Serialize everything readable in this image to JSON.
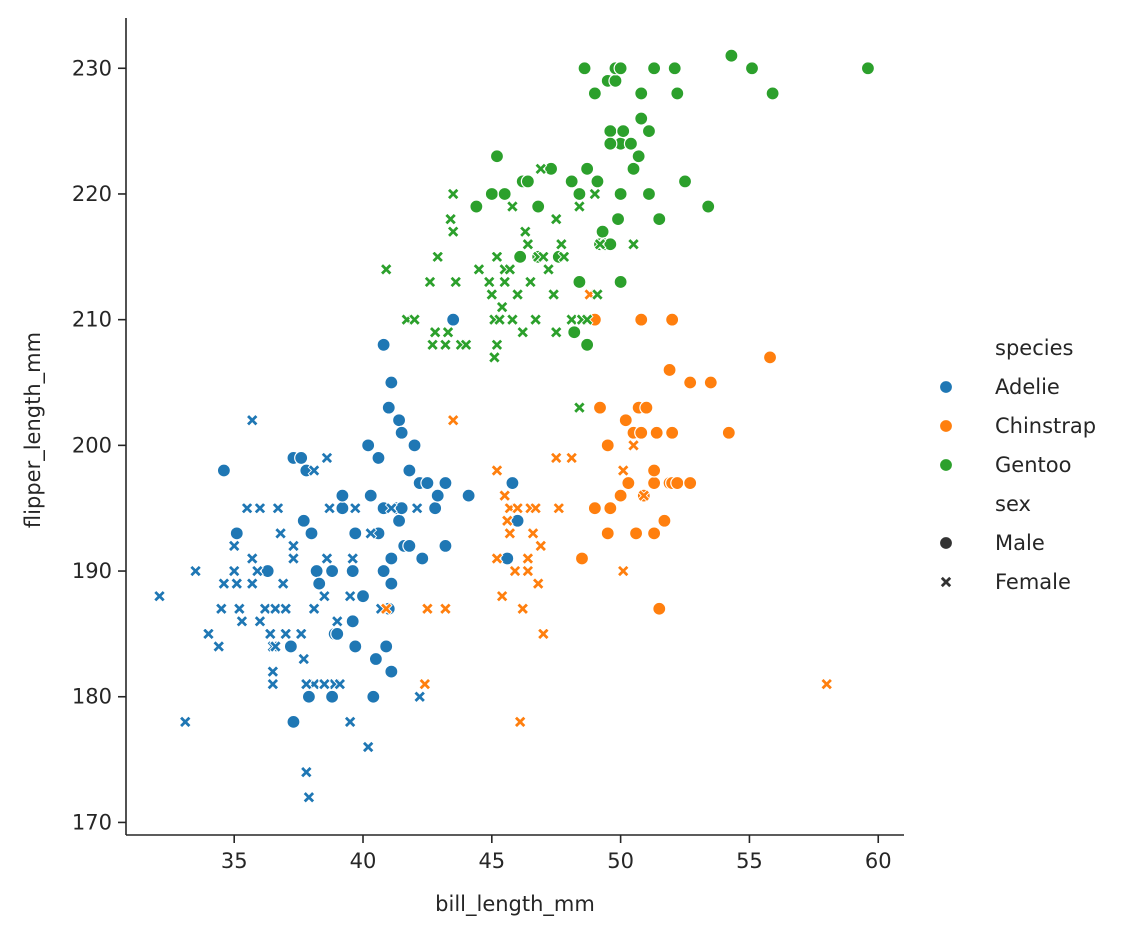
{
  "chart_data": {
    "type": "scatter",
    "title": "",
    "xlabel": "bill_length_mm",
    "ylabel": "flipper_length_mm",
    "xlim": [
      30.8,
      61.0
    ],
    "ylim": [
      169,
      234
    ],
    "xticks": [
      35,
      40,
      45,
      50,
      55,
      60
    ],
    "yticks": [
      170,
      180,
      190,
      200,
      210,
      220,
      230
    ],
    "grid": false,
    "legend": {
      "placement": "right",
      "hue_title": "species",
      "style_title": "sex",
      "hue_entries": [
        {
          "label": "Adelie",
          "color": "#1f77b4"
        },
        {
          "label": "Chinstrap",
          "color": "#ff7f0e"
        },
        {
          "label": "Gentoo",
          "color": "#2ca02c"
        }
      ],
      "style_entries": [
        {
          "label": "Male",
          "marker": "circle"
        },
        {
          "label": "Female",
          "marker": "x"
        }
      ]
    },
    "series": [
      {
        "species": "Adelie",
        "sex": "Male",
        "color": "#1f77b4",
        "marker": "circle",
        "points": [
          [
            34.6,
            198
          ],
          [
            35.1,
            193
          ],
          [
            36.3,
            190
          ],
          [
            37.3,
            199
          ],
          [
            37.6,
            199
          ],
          [
            37.8,
            198
          ],
          [
            37.7,
            194
          ],
          [
            38.0,
            193
          ],
          [
            37.2,
            184
          ],
          [
            37.3,
            178
          ],
          [
            37.9,
            180
          ],
          [
            38.2,
            190
          ],
          [
            38.8,
            190
          ],
          [
            38.9,
            185
          ],
          [
            39.2,
            195
          ],
          [
            39.2,
            196
          ],
          [
            39.6,
            190
          ],
          [
            39.7,
            193
          ],
          [
            39.6,
            186
          ],
          [
            39.7,
            184
          ],
          [
            39.0,
            185
          ],
          [
            38.8,
            180
          ],
          [
            38.3,
            189
          ],
          [
            40.2,
            200
          ],
          [
            40.3,
            196
          ],
          [
            40.6,
            199
          ],
          [
            40.6,
            193
          ],
          [
            40.8,
            195
          ],
          [
            41.1,
            205
          ],
          [
            41.0,
            203
          ],
          [
            41.4,
            202
          ],
          [
            41.5,
            201
          ],
          [
            41.3,
            195
          ],
          [
            41.4,
            194
          ],
          [
            41.6,
            192
          ],
          [
            41.1,
            189
          ],
          [
            41.0,
            187
          ],
          [
            40.9,
            184
          ],
          [
            41.1,
            182
          ],
          [
            40.5,
            183
          ],
          [
            40.0,
            188
          ],
          [
            40.4,
            180
          ],
          [
            40.8,
            190
          ],
          [
            41.8,
            198
          ],
          [
            42.0,
            200
          ],
          [
            42.2,
            197
          ],
          [
            42.5,
            197
          ],
          [
            42.8,
            195
          ],
          [
            42.9,
            196
          ],
          [
            43.2,
            197
          ],
          [
            43.2,
            192
          ],
          [
            42.3,
            191
          ],
          [
            41.8,
            192
          ],
          [
            41.1,
            191
          ],
          [
            41.5,
            195
          ],
          [
            44.1,
            196
          ],
          [
            43.5,
            210
          ],
          [
            40.8,
            208
          ],
          [
            45.8,
            197
          ],
          [
            45.6,
            191
          ],
          [
            46.0,
            194
          ]
        ]
      },
      {
        "species": "Adelie",
        "sex": "Female",
        "color": "#1f77b4",
        "marker": "x",
        "points": [
          [
            32.1,
            188
          ],
          [
            33.1,
            178
          ],
          [
            33.5,
            190
          ],
          [
            34.0,
            185
          ],
          [
            34.4,
            184
          ],
          [
            34.5,
            187
          ],
          [
            34.6,
            189
          ],
          [
            35.0,
            190
          ],
          [
            35.2,
            187
          ],
          [
            35.0,
            192
          ],
          [
            35.3,
            186
          ],
          [
            35.5,
            195
          ],
          [
            35.7,
            191
          ],
          [
            35.7,
            189
          ],
          [
            35.9,
            190
          ],
          [
            36.0,
            195
          ],
          [
            36.2,
            187
          ],
          [
            36.0,
            186
          ],
          [
            36.4,
            185
          ],
          [
            36.5,
            184
          ],
          [
            36.5,
            182
          ],
          [
            36.5,
            181
          ],
          [
            36.6,
            187
          ],
          [
            36.7,
            195
          ],
          [
            36.8,
            193
          ],
          [
            36.9,
            189
          ],
          [
            37.0,
            185
          ],
          [
            37.0,
            187
          ],
          [
            37.3,
            192
          ],
          [
            37.3,
            191
          ],
          [
            37.6,
            185
          ],
          [
            37.7,
            183
          ],
          [
            37.8,
            174
          ],
          [
            37.9,
            172
          ],
          [
            38.1,
            181
          ],
          [
            38.1,
            187
          ],
          [
            38.1,
            198
          ],
          [
            38.6,
            199
          ],
          [
            38.6,
            191
          ],
          [
            38.7,
            195
          ],
          [
            38.5,
            188
          ],
          [
            38.9,
            181
          ],
          [
            39.0,
            186
          ],
          [
            39.1,
            181
          ],
          [
            39.5,
            178
          ],
          [
            39.5,
            188
          ],
          [
            39.6,
            191
          ],
          [
            39.7,
            195
          ],
          [
            40.2,
            176
          ],
          [
            40.3,
            193
          ],
          [
            40.7,
            187
          ],
          [
            41.1,
            195
          ],
          [
            42.1,
            195
          ],
          [
            42.2,
            180
          ],
          [
            35.7,
            202
          ],
          [
            35.1,
            189
          ],
          [
            36.6,
            184
          ],
          [
            37.8,
            181
          ],
          [
            38.5,
            181
          ]
        ]
      },
      {
        "species": "Chinstrap",
        "sex": "Male",
        "color": "#ff7f0e",
        "marker": "circle",
        "points": [
          [
            48.5,
            191
          ],
          [
            49.0,
            195
          ],
          [
            49.2,
            203
          ],
          [
            49.5,
            193
          ],
          [
            49.5,
            200
          ],
          [
            49.6,
            195
          ],
          [
            50.0,
            196
          ],
          [
            50.2,
            202
          ],
          [
            50.3,
            197
          ],
          [
            50.5,
            201
          ],
          [
            50.6,
            193
          ],
          [
            50.7,
            203
          ],
          [
            50.8,
            210
          ],
          [
            50.8,
            201
          ],
          [
            50.9,
            196
          ],
          [
            51.0,
            203
          ],
          [
            51.3,
            193
          ],
          [
            51.3,
            197
          ],
          [
            51.3,
            198
          ],
          [
            51.4,
            201
          ],
          [
            51.5,
            187
          ],
          [
            51.7,
            194
          ],
          [
            51.9,
            197
          ],
          [
            52.0,
            197
          ],
          [
            52.0,
            201
          ],
          [
            52.0,
            210
          ],
          [
            52.2,
            197
          ],
          [
            52.7,
            197
          ],
          [
            52.7,
            205
          ],
          [
            53.5,
            205
          ],
          [
            54.2,
            201
          ],
          [
            55.8,
            207
          ],
          [
            51.9,
            206
          ],
          [
            49.0,
            210
          ]
        ]
      },
      {
        "species": "Chinstrap",
        "sex": "Female",
        "color": "#ff7f0e",
        "marker": "x",
        "points": [
          [
            40.9,
            187
          ],
          [
            42.4,
            181
          ],
          [
            42.5,
            187
          ],
          [
            43.2,
            187
          ],
          [
            43.5,
            202
          ],
          [
            45.2,
            191
          ],
          [
            45.2,
            198
          ],
          [
            45.4,
            188
          ],
          [
            45.5,
            196
          ],
          [
            45.6,
            194
          ],
          [
            45.7,
            195
          ],
          [
            45.7,
            193
          ],
          [
            45.9,
            190
          ],
          [
            46.0,
            195
          ],
          [
            46.1,
            178
          ],
          [
            46.2,
            187
          ],
          [
            46.4,
            190
          ],
          [
            46.4,
            191
          ],
          [
            46.5,
            195
          ],
          [
            46.6,
            193
          ],
          [
            46.7,
            195
          ],
          [
            46.8,
            189
          ],
          [
            46.9,
            192
          ],
          [
            47.0,
            185
          ],
          [
            47.5,
            199
          ],
          [
            47.6,
            195
          ],
          [
            48.1,
            199
          ],
          [
            48.8,
            212
          ],
          [
            50.1,
            190
          ],
          [
            50.1,
            198
          ],
          [
            50.5,
            200
          ],
          [
            50.9,
            196
          ],
          [
            58.0,
            181
          ]
        ]
      },
      {
        "species": "Gentoo",
        "sex": "Male",
        "color": "#2ca02c",
        "marker": "circle",
        "points": [
          [
            44.4,
            219
          ],
          [
            45.2,
            223
          ],
          [
            45.0,
            220
          ],
          [
            45.5,
            220
          ],
          [
            46.1,
            215
          ],
          [
            46.2,
            221
          ],
          [
            46.4,
            221
          ],
          [
            46.8,
            219
          ],
          [
            46.8,
            215
          ],
          [
            47.3,
            222
          ],
          [
            47.6,
            215
          ],
          [
            48.1,
            221
          ],
          [
            48.2,
            209
          ],
          [
            48.4,
            213
          ],
          [
            48.4,
            220
          ],
          [
            48.6,
            230
          ],
          [
            48.7,
            222
          ],
          [
            48.7,
            208
          ],
          [
            49.0,
            228
          ],
          [
            49.1,
            221
          ],
          [
            49.2,
            216
          ],
          [
            49.3,
            217
          ],
          [
            49.4,
            216
          ],
          [
            49.5,
            229
          ],
          [
            49.6,
            225
          ],
          [
            49.6,
            216
          ],
          [
            49.8,
            229
          ],
          [
            49.8,
            230
          ],
          [
            50.0,
            220
          ],
          [
            50.0,
            213
          ],
          [
            50.0,
            224
          ],
          [
            50.1,
            225
          ],
          [
            50.0,
            230
          ],
          [
            50.4,
            224
          ],
          [
            50.5,
            222
          ],
          [
            50.7,
            223
          ],
          [
            50.8,
            226
          ],
          [
            50.8,
            228
          ],
          [
            51.1,
            220
          ],
          [
            51.1,
            225
          ],
          [
            51.5,
            218
          ],
          [
            51.3,
            230
          ],
          [
            52.1,
            230
          ],
          [
            52.2,
            228
          ],
          [
            52.5,
            221
          ],
          [
            53.4,
            219
          ],
          [
            54.3,
            231
          ],
          [
            55.1,
            230
          ],
          [
            55.9,
            228
          ],
          [
            59.6,
            230
          ],
          [
            49.9,
            218
          ],
          [
            48.2,
            209
          ],
          [
            49.6,
            224
          ]
        ]
      },
      {
        "species": "Gentoo",
        "sex": "Female",
        "color": "#2ca02c",
        "marker": "x",
        "points": [
          [
            40.9,
            214
          ],
          [
            41.7,
            210
          ],
          [
            42.0,
            210
          ],
          [
            42.6,
            213
          ],
          [
            42.7,
            208
          ],
          [
            42.8,
            209
          ],
          [
            42.9,
            215
          ],
          [
            43.2,
            208
          ],
          [
            43.3,
            209
          ],
          [
            43.4,
            218
          ],
          [
            43.5,
            220
          ],
          [
            43.5,
            217
          ],
          [
            43.6,
            213
          ],
          [
            43.8,
            208
          ],
          [
            44.0,
            208
          ],
          [
            44.5,
            214
          ],
          [
            44.9,
            213
          ],
          [
            45.0,
            212
          ],
          [
            45.1,
            210
          ],
          [
            45.1,
            207
          ],
          [
            45.2,
            208
          ],
          [
            45.2,
            215
          ],
          [
            45.3,
            210
          ],
          [
            45.4,
            211
          ],
          [
            45.5,
            213
          ],
          [
            45.5,
            214
          ],
          [
            45.7,
            214
          ],
          [
            45.8,
            210
          ],
          [
            45.8,
            219
          ],
          [
            46.0,
            212
          ],
          [
            46.2,
            209
          ],
          [
            46.3,
            217
          ],
          [
            46.4,
            216
          ],
          [
            46.5,
            213
          ],
          [
            46.7,
            210
          ],
          [
            46.8,
            215
          ],
          [
            46.9,
            222
          ],
          [
            47.0,
            215
          ],
          [
            47.2,
            214
          ],
          [
            47.4,
            212
          ],
          [
            47.5,
            209
          ],
          [
            47.5,
            218
          ],
          [
            47.7,
            216
          ],
          [
            47.8,
            215
          ],
          [
            48.1,
            210
          ],
          [
            48.4,
            219
          ],
          [
            48.5,
            210
          ],
          [
            48.7,
            210
          ],
          [
            49.0,
            220
          ],
          [
            49.1,
            212
          ],
          [
            49.2,
            216
          ],
          [
            50.5,
            216
          ],
          [
            48.4,
            203
          ]
        ]
      }
    ]
  }
}
